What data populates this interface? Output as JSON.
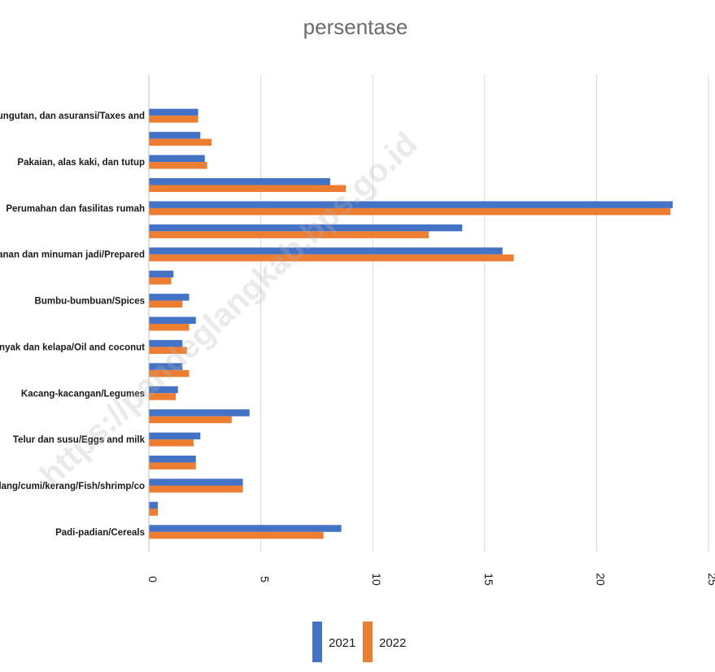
{
  "chart_data": {
    "type": "bar",
    "orientation": "horizontal",
    "title": "persentase",
    "categories": [
      "Padi-padian/Cereals",
      "",
      "Ikan/udang/cumi/kerang/Fish/shrimp/co",
      "",
      "Telur dan susu/Eggs and milk",
      "",
      "Kacang-kacangan/Legumes",
      "",
      "Minyak dan kelapa/Oil and coconut",
      "",
      "Bumbu-bumbuan/Spices",
      "",
      "Makanan dan minuman jadi/Prepared",
      "",
      "Perumahan dan fasilitas rumah",
      "",
      "Pakaian, alas kaki, dan tutup",
      "",
      "Pajak, pungutan, dan asuransi/Taxes and"
    ],
    "series": [
      {
        "name": "2021",
        "color": "#4472c4",
        "values": [
          8.6,
          0.4,
          4.2,
          2.1,
          2.3,
          4.5,
          1.3,
          1.5,
          1.5,
          2.1,
          1.8,
          1.1,
          15.8,
          14.0,
          23.4,
          8.1,
          2.5,
          2.3,
          2.2
        ]
      },
      {
        "name": "2022",
        "color": "#ed7d31",
        "values": [
          7.8,
          0.4,
          4.2,
          2.1,
          2.0,
          3.7,
          1.2,
          1.8,
          1.7,
          1.8,
          1.5,
          1.0,
          16.3,
          12.5,
          23.3,
          8.8,
          2.6,
          2.8,
          2.2
        ]
      }
    ],
    "xlim": [
      0,
      25
    ],
    "xticks": [
      "0",
      "5",
      "10",
      "15",
      "20",
      "25"
    ],
    "grid": true,
    "legend": "bottom",
    "watermark": "https://pandeglangkab.bps.go.id"
  }
}
